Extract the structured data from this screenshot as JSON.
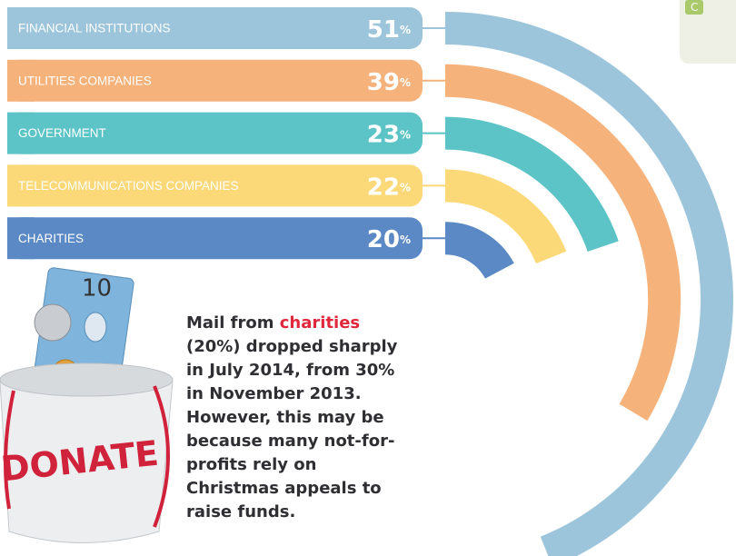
{
  "chart_data": {
    "type": "radial-bar",
    "categories": [
      "FINANCIAL INSTITUTIONS",
      "UTILITIES COMPANIES",
      "GOVERNMENT",
      "TELECOMMUNICATIONS COMPANIES",
      "CHARITIES"
    ],
    "values": [
      51,
      39,
      23,
      22,
      20
    ],
    "value_labels": [
      "51%",
      "39%",
      "23%",
      "22%",
      "20%"
    ],
    "colors": [
      "#9cc5dc",
      "#f6b27b",
      "#5cc4c7",
      "#fbd878",
      "#5b89c5"
    ],
    "annotation": [
      "Mail from ",
      "charities",
      " (20%) dropped sharply in July 2014, from 30% in November 2013. However, this may be because many not-for-profits rely on Christmas appeals to raise funds."
    ],
    "annotation_highlight_color": "#e0283c",
    "corner_label": "C",
    "illustration": {
      "label": "DONATE",
      "note": "10"
    }
  }
}
